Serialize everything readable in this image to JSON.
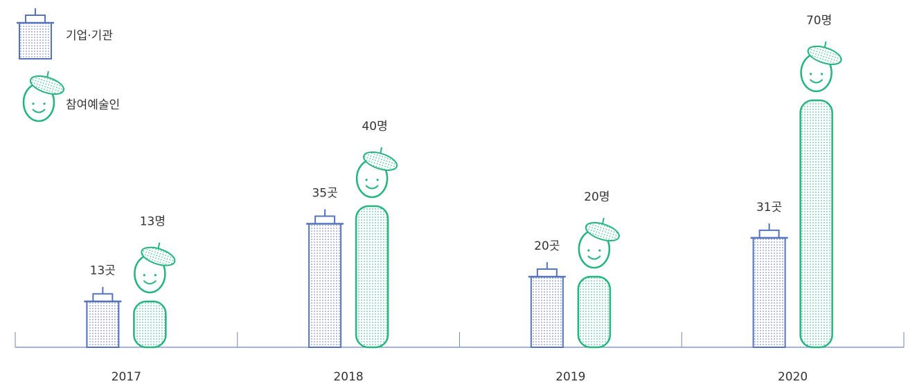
{
  "chart_data": {
    "type": "pictogram-bar",
    "categories": [
      "2017",
      "2018",
      "2019",
      "2020"
    ],
    "series": [
      {
        "name": "기업·기관",
        "color": "#5572bd",
        "values": [
          13,
          35,
          20,
          31
        ],
        "value_labels": [
          "13곳",
          "35곳",
          "20곳",
          "31곳"
        ]
      },
      {
        "name": "참여예술인",
        "color": "#24b47e",
        "values": [
          13,
          40,
          20,
          70
        ],
        "value_labels": [
          "13명",
          "40명",
          "20명",
          "70명"
        ]
      }
    ]
  }
}
